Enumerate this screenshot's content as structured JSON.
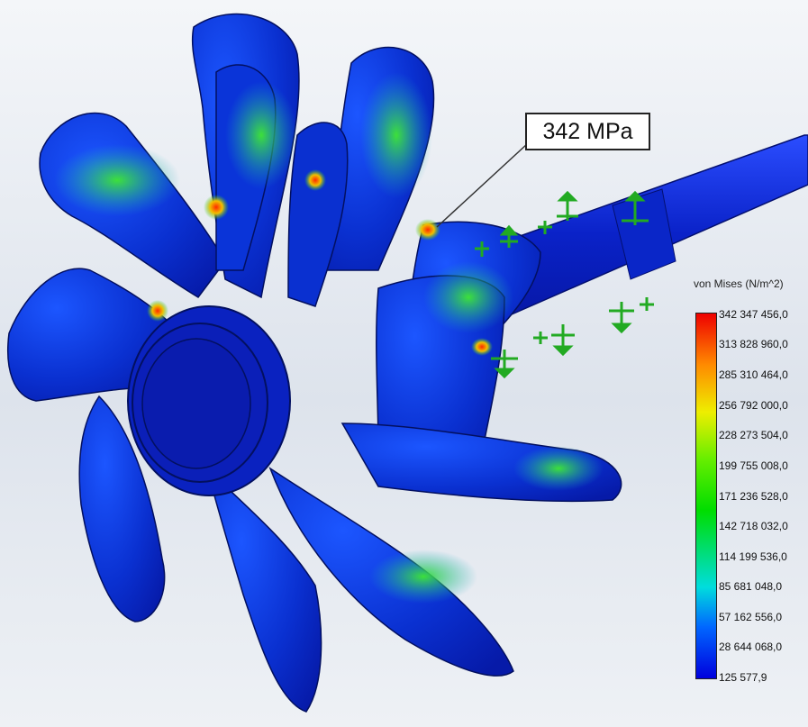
{
  "callout": {
    "text": "342 MPa"
  },
  "legend": {
    "title": "von Mises (N/m^2)",
    "ticks": [
      "342 347 456,0",
      "313 828 960,0",
      "285 310 464,0",
      "256 792 000,0",
      "228 273 504,0",
      "199 755 008,0",
      "171 236 528,0",
      "142 718 032,0",
      "114 199 536,0",
      "85 681 048,0",
      "57 162 556,0",
      "28 644 068,0",
      "125 577,9"
    ],
    "colors": [
      "#ee0000",
      "#ff8a00",
      "#eeee00",
      "#66ee00",
      "#00dd00",
      "#00dddd",
      "#0066ff",
      "#0000dd"
    ]
  },
  "model": {
    "blade_color": "#0a2fd0",
    "hub_color": "#0b1fb8",
    "fixture_color": "#22aa22"
  }
}
